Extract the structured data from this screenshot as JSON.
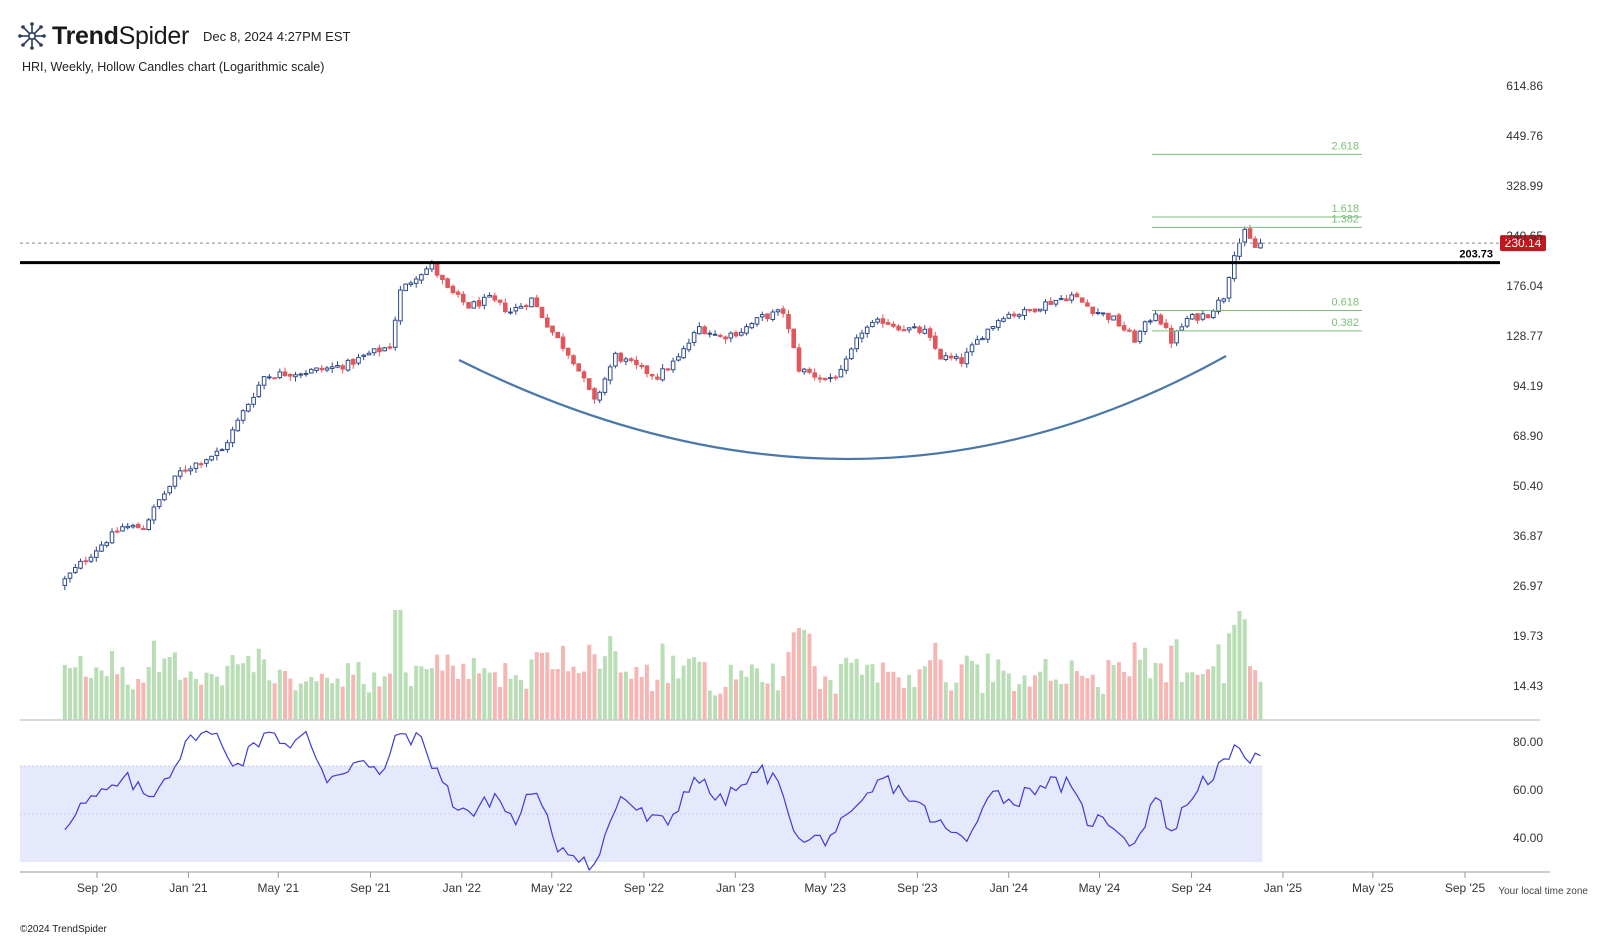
{
  "header": {
    "brand_bold": "Trend",
    "brand_light": "Spider",
    "timestamp": "Dec 8, 2024 4:27PM EST",
    "subtitle": "HRI, Weekly, Hollow Candles chart (Logarithmic scale)"
  },
  "footer": {
    "timezone_note": "Your local time zone",
    "copyright": "©2024 TrendSpider"
  },
  "colors": {
    "up": "#2c4a8c",
    "down": "#e0565b",
    "vol_up": "#b9deb5",
    "vol_down": "#f6b6b4",
    "rsi_line": "#3c3cd8",
    "rsi_band": "#e6e8fb",
    "arc": "#4a78a8",
    "fib": "#7bbf7b",
    "price_badge": "#c0181e"
  },
  "chart_data": {
    "type": "candlestick",
    "title": "HRI, Weekly, Hollow Candles chart (Logarithmic scale)",
    "y_scale": "log",
    "y_ticks": [
      614.86,
      449.76,
      328.99,
      240.65,
      176.04,
      128.77,
      94.19,
      68.9,
      50.4,
      36.87,
      26.97,
      19.73,
      14.43
    ],
    "x_ticks": [
      "Sep '20",
      "Jan '21",
      "May '21",
      "Sep '21",
      "Jan '22",
      "May '22",
      "Sep '22",
      "Jan '23",
      "May '23",
      "Sep '23",
      "Jan '24",
      "May '24",
      "Sep '24",
      "Jan '25",
      "May '25",
      "Sep '25"
    ],
    "last_price": "230.14",
    "resistance": {
      "value": 203.73,
      "label": "203.73"
    },
    "fib_levels": [
      {
        "label": "2.618",
        "price": 401
      },
      {
        "label": "1.618",
        "price": 271
      },
      {
        "label": "1.382",
        "price": 254
      },
      {
        "label": "0.618",
        "price": 151
      },
      {
        "label": "0.382",
        "price": 133
      }
    ],
    "weekly_close_anchors": [
      [
        "2020-07-20",
        28
      ],
      [
        "2020-08-10",
        31
      ],
      [
        "2020-09-07",
        35
      ],
      [
        "2020-10-05",
        39
      ],
      [
        "2020-11-02",
        39
      ],
      [
        "2020-11-23",
        46
      ],
      [
        "2020-12-21",
        55
      ],
      [
        "2021-01-18",
        59
      ],
      [
        "2021-02-15",
        63
      ],
      [
        "2021-03-15",
        80
      ],
      [
        "2021-04-12",
        100
      ],
      [
        "2021-05-10",
        102
      ],
      [
        "2021-06-07",
        103
      ],
      [
        "2021-07-05",
        105
      ],
      [
        "2021-08-02",
        108
      ],
      [
        "2021-08-30",
        115
      ],
      [
        "2021-09-27",
        121
      ],
      [
        "2021-10-11",
        170
      ],
      [
        "2021-11-01",
        188
      ],
      [
        "2021-11-22",
        200
      ],
      [
        "2021-12-13",
        172
      ],
      [
        "2022-01-10",
        155
      ],
      [
        "2022-02-07",
        162
      ],
      [
        "2022-03-07",
        150
      ],
      [
        "2022-04-04",
        162
      ],
      [
        "2022-05-02",
        132
      ],
      [
        "2022-05-30",
        111
      ],
      [
        "2022-06-27",
        85
      ],
      [
        "2022-07-25",
        114
      ],
      [
        "2022-08-22",
        106
      ],
      [
        "2022-09-19",
        100
      ],
      [
        "2022-10-17",
        112
      ],
      [
        "2022-11-14",
        136
      ],
      [
        "2022-12-12",
        128
      ],
      [
        "2023-01-09",
        133
      ],
      [
        "2023-02-06",
        145
      ],
      [
        "2023-03-06",
        150
      ],
      [
        "2023-03-27",
        105
      ],
      [
        "2023-05-01",
        98
      ],
      [
        "2023-05-22",
        102
      ],
      [
        "2023-06-19",
        133
      ],
      [
        "2023-07-17",
        142
      ],
      [
        "2023-08-14",
        135
      ],
      [
        "2023-09-11",
        132
      ],
      [
        "2023-10-02",
        113
      ],
      [
        "2023-10-30",
        110
      ],
      [
        "2023-11-27",
        130
      ],
      [
        "2023-12-25",
        147
      ],
      [
        "2024-01-22",
        149
      ],
      [
        "2024-02-19",
        158
      ],
      [
        "2024-03-25",
        166
      ],
      [
        "2024-04-22",
        152
      ],
      [
        "2024-05-20",
        143
      ],
      [
        "2024-06-17",
        126
      ],
      [
        "2024-07-15",
        150
      ],
      [
        "2024-08-05",
        125
      ],
      [
        "2024-08-26",
        143
      ],
      [
        "2024-09-23",
        148
      ],
      [
        "2024-10-14",
        165
      ],
      [
        "2024-10-28",
        218
      ],
      [
        "2024-11-11",
        245
      ],
      [
        "2024-11-25",
        224
      ],
      [
        "2024-12-02",
        230
      ]
    ],
    "volume_axis_label": "",
    "rsi": {
      "y_ticks": [
        80.0,
        60.0,
        40.0
      ],
      "band": [
        30,
        70
      ],
      "midline": 50,
      "anchors": [
        [
          "2020-07-20",
          45
        ],
        [
          "2020-08-03",
          52
        ],
        [
          "2020-09-07",
          58
        ],
        [
          "2020-10-12",
          64
        ],
        [
          "2020-11-09",
          57
        ],
        [
          "2020-12-07",
          68
        ],
        [
          "2021-01-11",
          84
        ],
        [
          "2021-02-08",
          82
        ],
        [
          "2021-03-08",
          70
        ],
        [
          "2021-04-19",
          86
        ],
        [
          "2021-05-17",
          77
        ],
        [
          "2021-06-07",
          83
        ],
        [
          "2021-07-05",
          65
        ],
        [
          "2021-08-16",
          72
        ],
        [
          "2021-09-13",
          66
        ],
        [
          "2021-10-11",
          84
        ],
        [
          "2021-11-08",
          80
        ],
        [
          "2021-11-29",
          68
        ],
        [
          "2021-12-20",
          55
        ],
        [
          "2022-01-17",
          50
        ],
        [
          "2022-02-14",
          58
        ],
        [
          "2022-03-14",
          46
        ],
        [
          "2022-04-04",
          61
        ],
        [
          "2022-05-09",
          37
        ],
        [
          "2022-06-06",
          33
        ],
        [
          "2022-06-27",
          28
        ],
        [
          "2022-08-01",
          58
        ],
        [
          "2022-09-05",
          48
        ],
        [
          "2022-10-03",
          46
        ],
        [
          "2022-11-07",
          66
        ],
        [
          "2022-12-12",
          55
        ],
        [
          "2023-02-06",
          68
        ],
        [
          "2023-03-06",
          60
        ],
        [
          "2023-03-27",
          38
        ],
        [
          "2023-05-01",
          40
        ],
        [
          "2023-06-05",
          48
        ],
        [
          "2023-07-17",
          65
        ],
        [
          "2023-08-21",
          57
        ],
        [
          "2023-10-02",
          45
        ],
        [
          "2023-11-06",
          38
        ],
        [
          "2023-12-04",
          60
        ],
        [
          "2024-01-08",
          55
        ],
        [
          "2024-02-12",
          63
        ],
        [
          "2024-03-18",
          62
        ],
        [
          "2024-04-15",
          48
        ],
        [
          "2024-05-20",
          46
        ],
        [
          "2024-06-17",
          37
        ],
        [
          "2024-07-15",
          58
        ],
        [
          "2024-08-05",
          42
        ],
        [
          "2024-09-09",
          62
        ],
        [
          "2024-10-14",
          70
        ],
        [
          "2024-11-04",
          78
        ],
        [
          "2024-11-25",
          72
        ],
        [
          "2024-12-02",
          71
        ]
      ]
    }
  }
}
